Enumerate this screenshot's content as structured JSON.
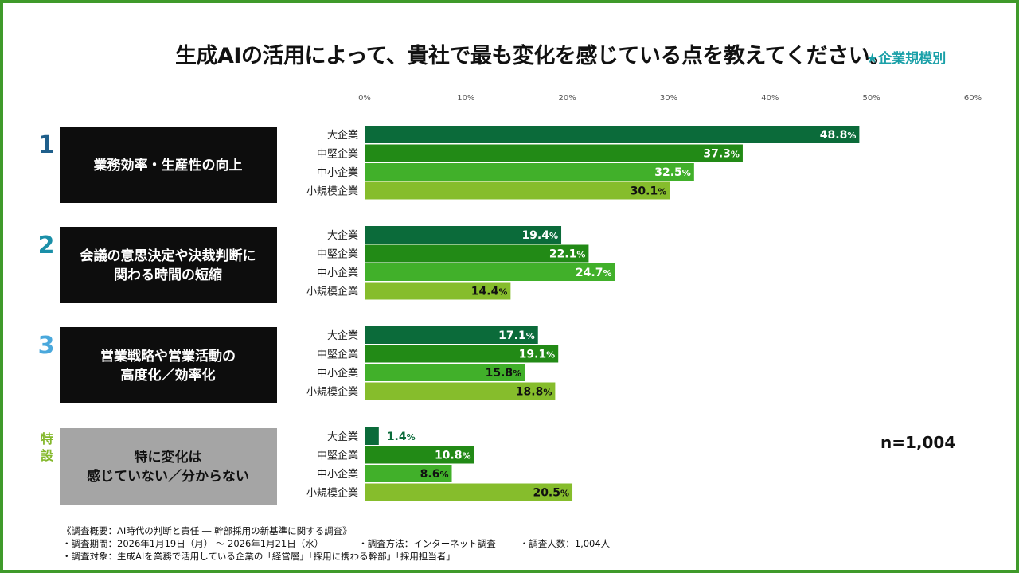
{
  "header": {
    "title": "生成AIの活用によって、貴社で最も変化を感じている点を教えてください。",
    "subtitle": "★企業規模別"
  },
  "sample_size": "n=1,004",
  "colors": {
    "大企業": "#0b6b3a",
    "中堅企業": "#228a16",
    "中小企業": "#41b02a",
    "小規模企業": "#86bd2c",
    "frame": "#3f9a2a",
    "label_box_dark": "#0d0d0d",
    "label_box_gray": "#a5a5a5",
    "rank_1": "#1f5f8b",
    "rank_2": "#1a8fa8",
    "rank_3": "#4aa8dc",
    "rank_special": "#84b82c"
  },
  "chart_data": {
    "type": "bar",
    "orientation": "horizontal",
    "unit": "%",
    "xlim": [
      0,
      60
    ],
    "x_ticks": [
      "0%",
      "10%",
      "20%",
      "30%",
      "40%",
      "50%",
      "60%"
    ],
    "segments": [
      "大企業",
      "中堅企業",
      "中小企業",
      "小規模企業"
    ],
    "groups": [
      {
        "rank": "1",
        "label_lines": [
          "業務効率・生産性の向上"
        ],
        "style": "dark",
        "values": [
          48.8,
          37.3,
          32.5,
          30.1
        ],
        "value_labels": [
          "48.8",
          "37.3",
          "32.5",
          "30.1"
        ]
      },
      {
        "rank": "2",
        "label_lines": [
          "会議の意思決定や決裁判断に",
          "関わる時間の短縮"
        ],
        "style": "dark",
        "values": [
          19.4,
          22.1,
          24.7,
          14.4
        ],
        "value_labels": [
          "19.4",
          "22.1",
          "24.7",
          "14.4"
        ]
      },
      {
        "rank": "3",
        "label_lines": [
          "営業戦略や営業活動の",
          "高度化／効率化"
        ],
        "style": "dark",
        "values": [
          17.1,
          19.1,
          15.8,
          18.8
        ],
        "value_labels": [
          "17.1",
          "19.1",
          "15.8",
          "18.8"
        ]
      },
      {
        "rank": "特設",
        "label_lines": [
          "特に変化は",
          "感じていない／分からない"
        ],
        "style": "gray",
        "values": [
          1.4,
          10.8,
          8.6,
          20.5
        ],
        "value_labels": [
          "1.4",
          "10.8",
          "8.6",
          "20.5"
        ]
      }
    ]
  },
  "footer": {
    "line1": "《調査概要：AI時代の判断と責任 ― 幹部採用の新基準に関する調査》",
    "period": "・調査期間：2026年1月19日（月） 〜 2026年1月21日（水）",
    "method": "・調査方法：インターネット調査",
    "respondents": "・調査人数：1,004人",
    "target": "・調査対象：生成AIを業務で活用している企業の「経営層」「採用に携わる幹部」「採用担当者」"
  }
}
